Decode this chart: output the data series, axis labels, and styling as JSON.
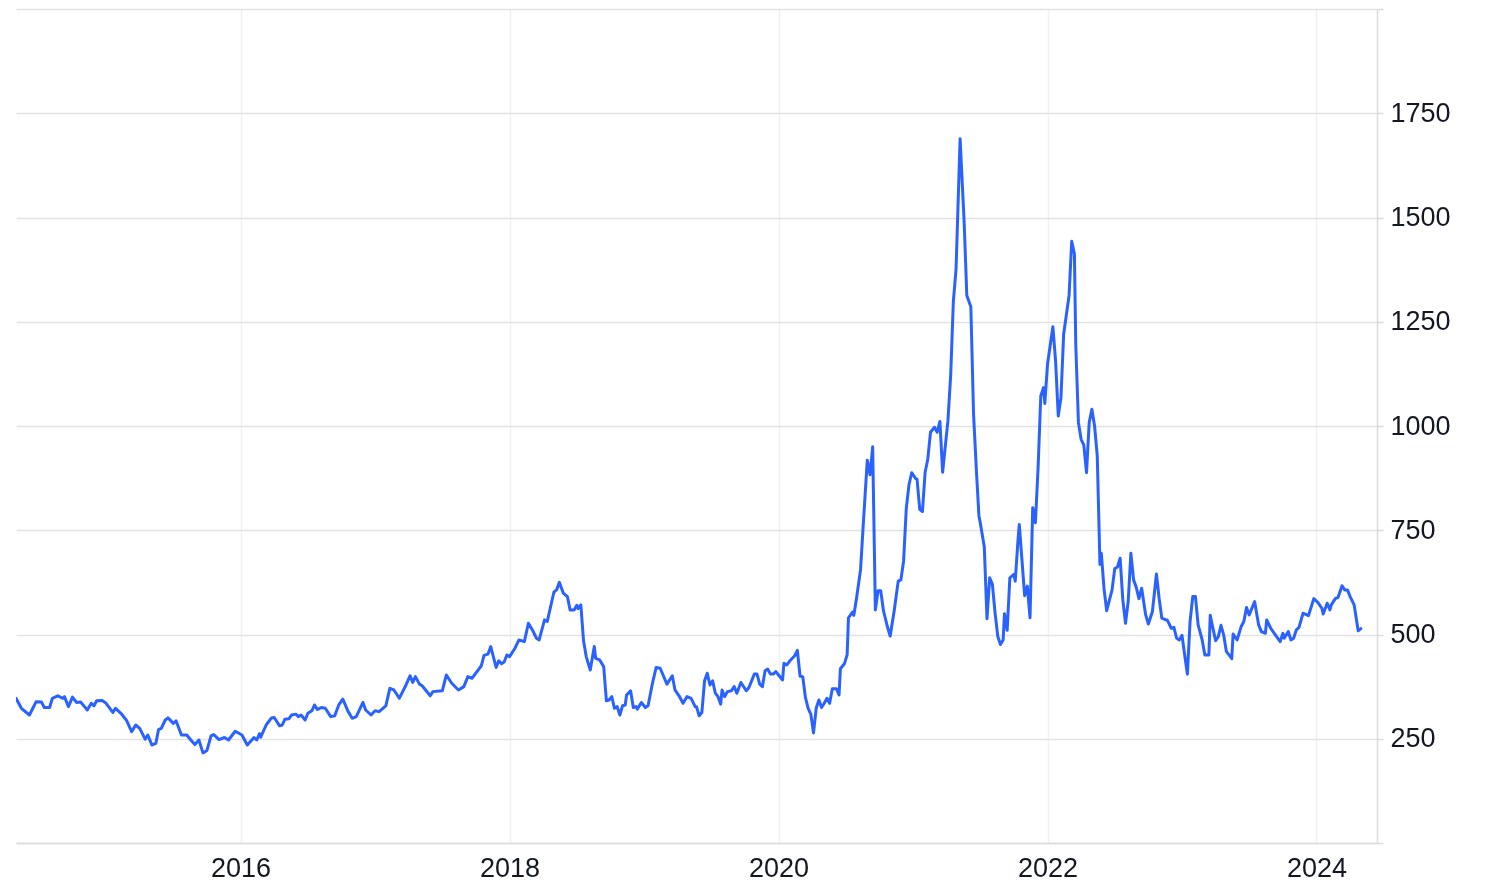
{
  "chart_data": {
    "type": "line",
    "x": [
      2014.33,
      2014.37,
      2014.43,
      2014.48,
      2014.52,
      2014.54,
      2014.58,
      2014.6,
      2014.64,
      2014.68,
      2014.69,
      2014.72,
      2014.75,
      2014.78,
      2014.81,
      2014.84,
      2014.86,
      2014.89,
      2014.91,
      2014.93,
      2014.97,
      2015.0,
      2015.05,
      2015.07,
      2015.11,
      2015.15,
      2015.19,
      2015.22,
      2015.25,
      2015.29,
      2015.31,
      2015.34,
      2015.37,
      2015.39,
      2015.41,
      2015.44,
      2015.46,
      2015.5,
      2015.52,
      2015.56,
      2015.6,
      2015.63,
      2015.66,
      2015.69,
      2015.72,
      2015.75,
      2015.78,
      2015.8,
      2015.84,
      2015.88,
      2015.91,
      2015.96,
      2016.01,
      2016.05,
      2016.1,
      2016.12,
      2016.14,
      2016.15,
      2016.19,
      2016.23,
      2016.25,
      2016.29,
      2016.31,
      2016.33,
      2016.36,
      2016.38,
      2016.41,
      2016.43,
      2016.45,
      2016.48,
      2016.5,
      2016.53,
      2016.55,
      2016.57,
      2016.6,
      2016.63,
      2016.67,
      2016.7,
      2016.73,
      2016.76,
      2016.8,
      2016.83,
      2016.86,
      2016.91,
      2016.93,
      2016.97,
      2017.0,
      2017.03,
      2017.08,
      2017.11,
      2017.14,
      2017.18,
      2017.23,
      2017.26,
      2017.28,
      2017.3,
      2017.33,
      2017.35,
      2017.41,
      2017.43,
      2017.5,
      2017.53,
      2017.57,
      2017.62,
      2017.66,
      2017.69,
      2017.72,
      2017.79,
      2017.81,
      2017.84,
      2017.86,
      2017.9,
      2017.92,
      2017.94,
      2017.96,
      2017.98,
      2018.0,
      2018.04,
      2018.07,
      2018.11,
      2018.14,
      2018.17,
      2018.2,
      2018.22,
      2018.26,
      2018.28,
      2018.33,
      2018.35,
      2018.37,
      2018.4,
      2018.43,
      2018.45,
      2018.48,
      2018.5,
      2018.51,
      2018.53,
      2018.55,
      2018.57,
      2018.6,
      2018.63,
      2018.64,
      2018.67,
      2018.7,
      2018.72,
      2018.74,
      2018.76,
      2018.78,
      2018.8,
      2018.82,
      2018.84,
      2018.86,
      2018.87,
      2018.9,
      2018.92,
      2018.94,
      2018.95,
      2018.98,
      2019.01,
      2019.03,
      2019.06,
      2019.09,
      2019.12,
      2019.17,
      2019.21,
      2019.23,
      2019.26,
      2019.29,
      2019.32,
      2019.35,
      2019.38,
      2019.39,
      2019.41,
      2019.43,
      2019.45,
      2019.47,
      2019.49,
      2019.51,
      2019.53,
      2019.55,
      2019.57,
      2019.58,
      2019.6,
      2019.62,
      2019.65,
      2019.67,
      2019.69,
      2019.72,
      2019.76,
      2019.78,
      2019.82,
      2019.84,
      2019.86,
      2019.88,
      2019.9,
      2019.92,
      2019.94,
      2019.96,
      2019.98,
      2020.0,
      2020.03,
      2020.04,
      2020.06,
      2020.09,
      2020.12,
      2020.14,
      2020.16,
      2020.18,
      2020.2,
      2020.22,
      2020.24,
      2020.26,
      2020.28,
      2020.3,
      2020.32,
      2020.34,
      2020.36,
      2020.38,
      2020.4,
      2020.43,
      2020.45,
      2020.46,
      2020.49,
      2020.51,
      2020.52,
      2020.55,
      2020.56,
      2020.58,
      2020.61,
      2020.63,
      2020.66,
      2020.68,
      2020.7,
      2020.72,
      2020.74,
      2020.76,
      2020.78,
      2020.81,
      2020.83,
      2020.86,
      2020.89,
      2020.91,
      2020.93,
      2020.95,
      2020.97,
      2020.99,
      2021.02,
      2021.03,
      2021.05,
      2021.07,
      2021.09,
      2021.11,
      2021.13,
      2021.16,
      2021.18,
      2021.2,
      2021.22,
      2021.26,
      2021.28,
      2021.3,
      2021.32,
      2021.35,
      2021.38,
      2021.4,
      2021.43,
      2021.45,
      2021.47,
      2021.49,
      2021.5,
      2021.53,
      2021.55,
      2021.57,
      2021.59,
      2021.61,
      2021.63,
      2021.65,
      2021.67,
      2021.68,
      2021.7,
      2021.72,
      2021.75,
      2021.76,
      2021.78,
      2021.79,
      2021.83,
      2021.85,
      2021.87,
      2021.89,
      2021.91,
      2021.93,
      2021.95,
      2021.97,
      2021.98,
      2022.0,
      2022.04,
      2022.06,
      2022.08,
      2022.1,
      2022.12,
      2022.16,
      2022.18,
      2022.2,
      2022.21,
      2022.23,
      2022.25,
      2022.27,
      2022.29,
      2022.31,
      2022.33,
      2022.35,
      2022.37,
      2022.39,
      2022.4,
      2022.42,
      2022.44,
      2022.48,
      2022.5,
      2022.52,
      2022.54,
      2022.56,
      2022.58,
      2022.6,
      2022.62,
      2022.64,
      2022.66,
      2022.68,
      2022.7,
      2022.73,
      2022.75,
      2022.78,
      2022.81,
      2022.83,
      2022.85,
      2022.88,
      2022.89,
      2022.92,
      2022.94,
      2022.96,
      2022.98,
      2023.0,
      2023.02,
      2023.04,
      2023.06,
      2023.08,
      2023.1,
      2023.12,
      2023.14,
      2023.15,
      2023.17,
      2023.2,
      2023.21,
      2023.23,
      2023.25,
      2023.27,
      2023.29,
      2023.31,
      2023.33,
      2023.35,
      2023.37,
      2023.38,
      2023.41,
      2023.44,
      2023.46,
      2023.48,
      2023.5,
      2023.54,
      2023.57,
      2023.59,
      2023.62,
      2023.63,
      2023.66,
      2023.69,
      2023.73,
      2023.75,
      2023.76,
      2023.79,
      2023.81,
      2023.83,
      2023.85,
      2023.87,
      2023.9,
      2023.94,
      2023.95,
      2023.98,
      2024.01,
      2024.04,
      2024.05,
      2024.08,
      2024.1,
      2024.11,
      2024.14,
      2024.16,
      2024.19,
      2024.21,
      2024.23,
      2024.25,
      2024.28,
      2024.31,
      2024.33
    ],
    "series": [
      {
        "color": "#2962ff",
        "values": [
          347,
          323,
          307,
          339,
          338,
          325,
          325,
          347,
          353,
          347,
          351,
          327,
          350,
          337,
          338,
          327,
          319,
          335,
          329,
          341,
          342,
          335,
          313,
          323,
          311,
          295,
          267,
          283,
          275,
          249,
          259,
          235,
          239,
          272,
          275,
          295,
          300,
          287,
          293,
          259,
          259,
          247,
          236,
          247,
          216,
          222,
          257,
          260,
          248,
          253,
          247,
          268,
          259,
          235,
          253,
          247,
          262,
          254,
          283,
          300,
          301,
          281,
          283,
          297,
          298,
          307,
          309,
          303,
          307,
          295,
          311,
          317,
          331,
          320,
          325,
          323,
          303,
          305,
          331,
          345,
          315,
          299,
          303,
          337,
          319,
          307,
          317,
          315,
          329,
          371,
          367,
          347,
          379,
          401,
          385,
          399,
          381,
          377,
          353,
          363,
          365,
          403,
          383,
          367,
          375,
          399,
          395,
          425,
          450,
          453,
          471,
          421,
          437,
          430,
          434,
          451,
          447,
          467,
          487,
          483,
          527,
          511,
          491,
          487,
          535,
          531,
          602,
          607,
          625,
          599,
          591,
          559,
          559,
          570,
          562,
          571,
          485,
          447,
          415,
          471,
          443,
          439,
          423,
          341,
          343,
          351,
          323,
          327,
          307,
          329,
          331,
          355,
          365,
          325,
          327,
          321,
          337,
          325,
          329,
          379,
          421,
          419,
          381,
          401,
          367,
          353,
          335,
          351,
          347,
          327,
          327,
          305,
          313,
          389,
          407,
          379,
          389,
          359,
          351,
          333,
          367,
          351,
          363,
          365,
          375,
          359,
          385,
          365,
          373,
          405,
          405,
          381,
          375,
          413,
          417,
          405,
          405,
          411,
          403,
          391,
          431,
          427,
          439,
          449,
          462,
          400,
          399,
          349,
          323,
          309,
          264,
          323,
          343,
          325,
          335,
          347,
          335,
          370,
          370,
          355,
          418,
          430,
          451,
          540,
          554,
          546,
          587,
          656,
          764,
          918,
          883,
          950,
          559,
          605,
          605,
          557,
          518,
          496,
          557,
          628,
          631,
          677,
          803,
          859,
          888,
          874,
          872,
          800,
          795,
          889,
          921,
          985,
          997,
          985,
          1011,
          889,
          1014,
          1122,
          1299,
          1377,
          1689,
          1490,
          1313,
          1286,
          1029,
          901,
          785,
          768,
          710,
          538,
          636,
          621,
          552,
          496,
          476,
          487,
          550,
          510,
          636,
          644,
          628,
          724,
          764,
          593,
          616,
          540,
          804,
          768,
          900,
          1072,
          1092,
          1054,
          1148,
          1238,
          1156,
          1024,
          1068,
          1220,
          1312,
          1443,
          1413,
          1196,
          1008,
          968,
          954,
          888,
          1008,
          1040,
          1000,
          928,
          668,
          695,
          611,
          557,
          607,
          658,
          662,
          683,
          583,
          527,
          579,
          695,
          631,
          613,
          586,
          611,
          547,
          525,
          555,
          645,
          587,
          539,
          535,
          535,
          515,
          517,
          491,
          487,
          498,
          451,
          405,
          531,
          591,
          591,
          523,
          499,
          487,
          451,
          451,
          546,
          515,
          485,
          495,
          522,
          499,
          459,
          451,
          442,
          501,
          487,
          519,
          531,
          565,
          547,
          579,
          523,
          507,
          503,
          535,
          515,
          501,
          483,
          503,
          491,
          507,
          487,
          491,
          511,
          517,
          551,
          545,
          555,
          586,
          577,
          563,
          549,
          575,
          559,
          571,
          586,
          589,
          617,
          607,
          607,
          591,
          571,
          509,
          514
        ]
      }
    ],
    "xlim": [
      2014.33,
      2024.45
    ],
    "xticks": [
      2016,
      2018,
      2020,
      2022,
      2024
    ],
    "ylim": [
      0,
      2000
    ],
    "yticks": [
      {
        "value": 0,
        "label": null
      },
      250,
      500,
      750,
      1000,
      1250,
      1500,
      1750,
      {
        "value": 2000,
        "label": null
      }
    ],
    "grid": true
  }
}
